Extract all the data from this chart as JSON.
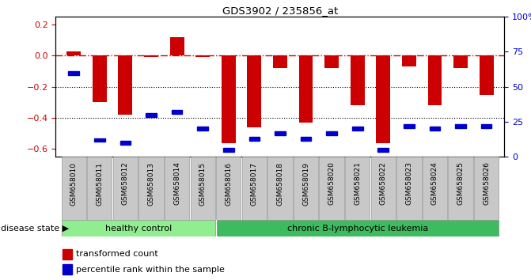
{
  "title": "GDS3902 / 235856_at",
  "samples": [
    "GSM658010",
    "GSM658011",
    "GSM658012",
    "GSM658013",
    "GSM658014",
    "GSM658015",
    "GSM658016",
    "GSM658017",
    "GSM658018",
    "GSM658019",
    "GSM658020",
    "GSM658021",
    "GSM658022",
    "GSM658023",
    "GSM658024",
    "GSM658025",
    "GSM658026"
  ],
  "red_values": [
    0.03,
    -0.3,
    -0.38,
    -0.01,
    0.12,
    -0.01,
    -0.56,
    -0.46,
    -0.08,
    -0.43,
    -0.08,
    -0.32,
    -0.56,
    -0.07,
    -0.32,
    -0.08,
    -0.25
  ],
  "blue_values": [
    60,
    12,
    10,
    30,
    32,
    20,
    5,
    13,
    17,
    13,
    17,
    20,
    5,
    22,
    20,
    22,
    22
  ],
  "ylim_left": [
    -0.65,
    0.25
  ],
  "ylim_right": [
    0,
    100
  ],
  "yticks_left": [
    -0.6,
    -0.4,
    -0.2,
    0.0,
    0.2
  ],
  "yticks_right": [
    0,
    25,
    50,
    75,
    100
  ],
  "healthy_count": 6,
  "healthy_label": "healthy control",
  "disease_label": "chronic B-lymphocytic leukemia",
  "group_label": "disease state ▶",
  "legend_red": "transformed count",
  "legend_blue": "percentile rank within the sample",
  "bar_color": "#cc0000",
  "dot_color": "#0000cc",
  "hline_color": "#cc0000",
  "healthy_color": "#90ee90",
  "disease_color": "#3dbb5e",
  "tick_bg_color": "#c8c8c8",
  "bg_color": "#ffffff",
  "bar_width": 0.55
}
